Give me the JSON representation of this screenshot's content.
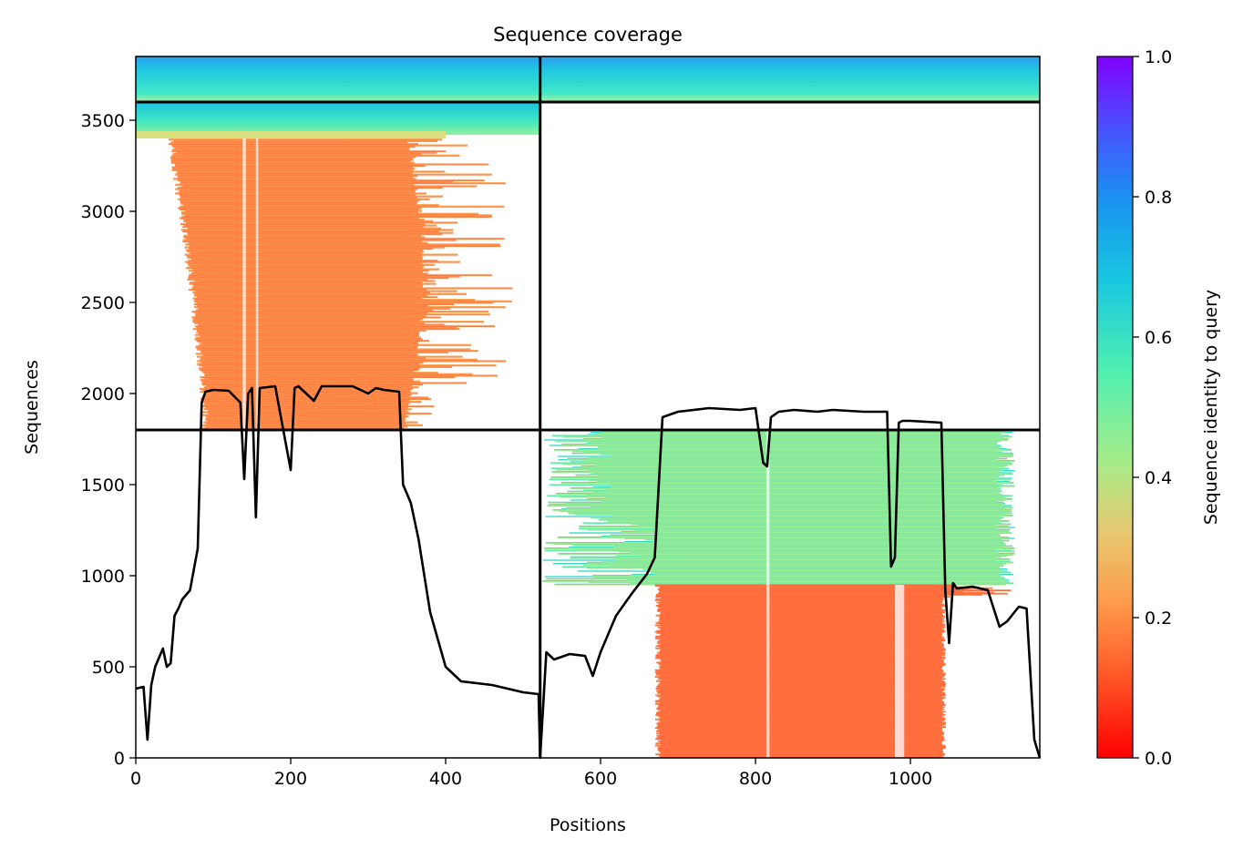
{
  "chart_data": {
    "type": "heatmap",
    "title": "Sequence coverage",
    "xlabel": "Positions",
    "ylabel": "Sequences",
    "xlim": [
      0,
      1167
    ],
    "ylim": [
      0,
      3850
    ],
    "x_ticks": [
      0,
      200,
      400,
      600,
      800,
      1000
    ],
    "y_ticks": [
      0,
      500,
      1000,
      1500,
      2000,
      2500,
      3000,
      3500
    ],
    "chain_boundary_x": 522,
    "block_boundaries_y": [
      1800,
      3600
    ],
    "colorbar": {
      "label": "Sequence identity to query",
      "range": [
        0.0,
        1.0
      ],
      "ticks": [
        "0.0",
        "0.2",
        "0.4",
        "0.6",
        "0.8",
        "1.0"
      ],
      "colormap": [
        "#ff0000",
        "#ff7a2a",
        "#ffb05a",
        "#d0e070",
        "#60f0a0",
        "#19c8e0",
        "#1e90ff",
        "#4c50ff",
        "#8000ff"
      ]
    },
    "blocks": [
      {
        "name": "paired",
        "x_range": [
          0,
          1167
        ],
        "y_range": [
          3600,
          3850
        ],
        "identity": [
          0.45,
          0.8
        ]
      },
      {
        "name": "chain-A-unpaired",
        "x_range": [
          0,
          522
        ],
        "y_range": [
          1800,
          3600
        ],
        "identity": [
          0.15,
          0.7
        ]
      },
      {
        "name": "chain-B-unpaired",
        "x_range": [
          522,
          1167
        ],
        "y_range": [
          0,
          1800
        ],
        "identity": [
          0.12,
          0.7
        ]
      }
    ],
    "series": [
      {
        "x": [
          0,
          10,
          15,
          20,
          25,
          30,
          35,
          40,
          45,
          50,
          55,
          60,
          70,
          80,
          85,
          90,
          100,
          120,
          135,
          140,
          145,
          150,
          155,
          160,
          180,
          200,
          205,
          210,
          230,
          240,
          250,
          280,
          300,
          310,
          320,
          340,
          345,
          355,
          365,
          380,
          400,
          420,
          460,
          500,
          520,
          522,
          530,
          540,
          560,
          580,
          590,
          600,
          620,
          640,
          660,
          670,
          680,
          700,
          740,
          780,
          800,
          810,
          815,
          820,
          830,
          850,
          880,
          900,
          940,
          970,
          975,
          980,
          985,
          990,
          1000,
          1040,
          1045,
          1050,
          1055,
          1060,
          1080,
          1100,
          1115,
          1125,
          1140,
          1150,
          1160,
          1167
        ],
        "y": [
          380,
          390,
          100,
          400,
          500,
          550,
          600,
          500,
          520,
          780,
          820,
          870,
          920,
          1150,
          1950,
          2010,
          2020,
          2015,
          1950,
          1530,
          2000,
          2030,
          1320,
          2030,
          2040,
          1580,
          2030,
          2040,
          1960,
          2040,
          2040,
          2040,
          2000,
          2030,
          2020,
          2010,
          1500,
          1400,
          1200,
          800,
          500,
          420,
          400,
          360,
          350,
          0,
          580,
          540,
          570,
          560,
          450,
          580,
          780,
          900,
          1010,
          1100,
          1870,
          1900,
          1920,
          1910,
          1920,
          1620,
          1600,
          1870,
          1900,
          1910,
          1900,
          1910,
          1900,
          1900,
          1050,
          1100,
          1840,
          1850,
          1850,
          1840,
          920,
          630,
          960,
          930,
          940,
          920,
          720,
          750,
          830,
          820,
          100,
          0
        ]
      }
    ]
  }
}
